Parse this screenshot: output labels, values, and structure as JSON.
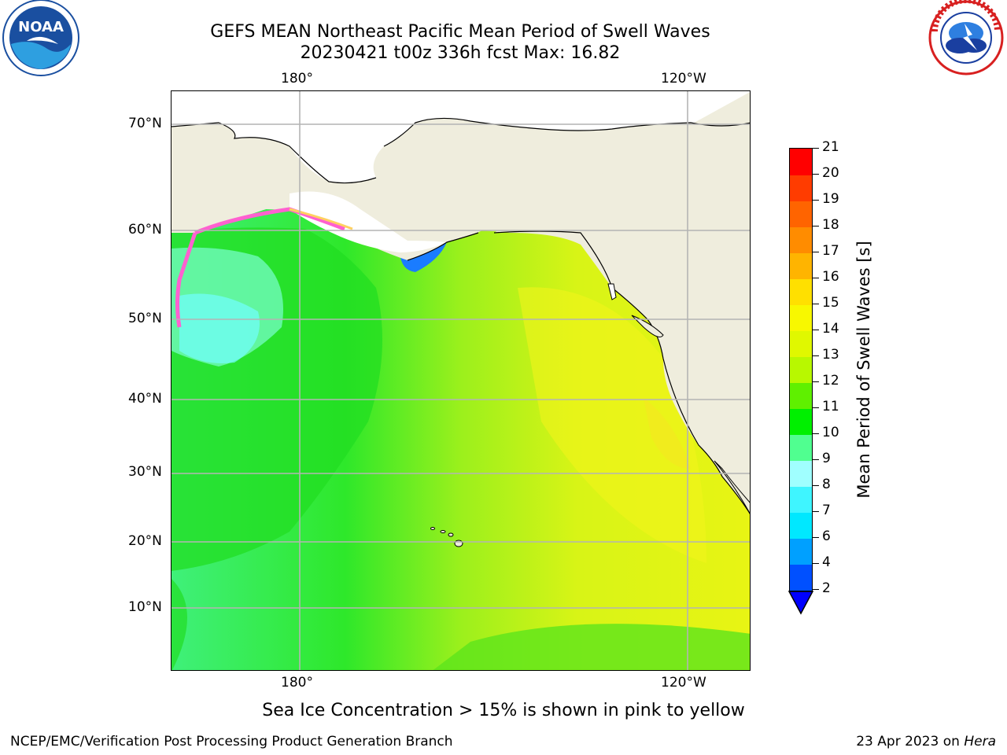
{
  "header": {
    "title_line1": "GEFS MEAN Northeast Pacific Mean Period of Swell Waves",
    "title_line2": "20230421 t00z 336h fcst   Max: 16.82"
  },
  "logos": {
    "left": {
      "icon": "noaa-logo-icon",
      "text": "NOAA"
    },
    "right": {
      "icon": "national-weather-service-logo-icon"
    }
  },
  "axes": {
    "lon_labels": [
      "180°",
      "120°W"
    ],
    "lat_labels": [
      "70°N",
      "60°N",
      "50°N",
      "40°N",
      "30°N",
      "20°N",
      "10°N"
    ]
  },
  "colorbar": {
    "title": "Mean Period of Swell Waves [s]",
    "ticks": [
      "2",
      "4",
      "6",
      "7",
      "8",
      "9",
      "10",
      "11",
      "12",
      "13",
      "14",
      "15",
      "16",
      "17",
      "18",
      "19",
      "20",
      "21"
    ],
    "colors": [
      "#0050ff",
      "#00a0ff",
      "#00e8ff",
      "#3ff5ff",
      "#a0ffff",
      "#50ff90",
      "#00f000",
      "#5ff000",
      "#b8f800",
      "#e0f800",
      "#f8f800",
      "#ffe000",
      "#ffb400",
      "#ff8c00",
      "#ff6400",
      "#ff3c00",
      "#ff0000"
    ],
    "extend_color": "#0000ff"
  },
  "map_colors": {
    "land": "#efeddd",
    "coast": "#000000",
    "grid": "#b4b4b4",
    "ice_pink": "#ff60d0",
    "ice_yellow": "#ffd060"
  },
  "footer": {
    "note": "Sea Ice Concentration > 15% is shown in pink to yellow",
    "left": "NCEP/EMC/Verification Post Processing Product Generation Branch",
    "right_date": "23 Apr 2023 on ",
    "right_machine": "Hera"
  }
}
